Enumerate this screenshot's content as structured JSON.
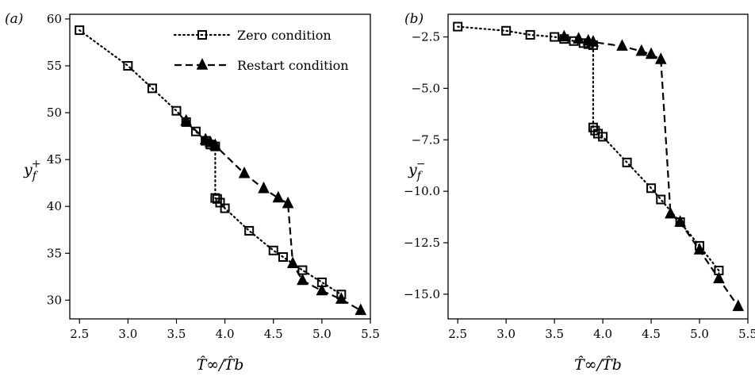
{
  "chart_data": [
    {
      "panel_label": "(a)",
      "type": "line",
      "xlabel": "T̂∞/T̂b",
      "ylabel": "y",
      "ylabel_sup": "+",
      "ylabel_sub": "f",
      "xlim": [
        2.4,
        5.5
      ],
      "ylim": [
        28,
        60.5
      ],
      "xticks": [
        2.5,
        3.0,
        3.5,
        4.0,
        4.5,
        5.0,
        5.5
      ],
      "xtick_labels": [
        "2.5",
        "3.0",
        "3.5",
        "4.0",
        "4.5",
        "5.0",
        "5.5"
      ],
      "yticks": [
        30,
        35,
        40,
        45,
        50,
        55,
        60
      ],
      "ytick_labels": [
        "30",
        "35",
        "40",
        "45",
        "50",
        "55",
        "60"
      ],
      "legend_position": "top-right",
      "series": [
        {
          "name": "Zero condition",
          "marker": "open-square",
          "line": "dotted",
          "x": [
            2.5,
            3.0,
            3.25,
            3.5,
            3.6,
            3.7,
            3.8,
            3.85,
            3.9,
            3.9,
            3.92,
            3.95,
            4.0,
            4.25,
            4.5,
            4.6,
            4.8,
            5.0,
            5.2
          ],
          "y": [
            58.8,
            55.0,
            52.6,
            50.2,
            49.0,
            48.0,
            47.0,
            46.6,
            46.4,
            40.9,
            40.8,
            40.4,
            39.8,
            37.4,
            35.3,
            34.6,
            33.2,
            31.9,
            30.6
          ]
        },
        {
          "name": "Restart condition",
          "marker": "filled-triangle",
          "line": "dashed",
          "x": [
            3.6,
            3.8,
            3.85,
            3.9,
            4.2,
            4.4,
            4.55,
            4.65,
            4.7,
            4.8,
            5.0,
            5.2,
            5.4
          ],
          "y": [
            49.1,
            47.1,
            46.8,
            46.5,
            43.5,
            41.9,
            40.9,
            40.3,
            33.9,
            32.1,
            31.0,
            30.1,
            28.9
          ]
        }
      ]
    },
    {
      "panel_label": "(b)",
      "type": "line",
      "xlabel": "T̂∞/T̂b",
      "ylabel": "y",
      "ylabel_sup": "−",
      "ylabel_sub": "f",
      "xlim": [
        2.4,
        5.5
      ],
      "ylim": [
        -16.2,
        -1.4
      ],
      "xticks": [
        2.5,
        3.0,
        3.5,
        4.0,
        4.5,
        5.0,
        5.5
      ],
      "xtick_labels": [
        "2.5",
        "3.0",
        "3.5",
        "4.0",
        "4.5",
        "5.0",
        "5.5"
      ],
      "yticks": [
        -2.5,
        -5.0,
        -7.5,
        -10.0,
        -12.5,
        -15.0
      ],
      "ytick_labels": [
        "−2.5",
        "−5.0",
        "−7.5",
        "−10.0",
        "−12.5",
        "−15.0"
      ],
      "series": [
        {
          "name": "Zero condition",
          "marker": "open-square",
          "line": "dotted",
          "x": [
            2.5,
            3.0,
            3.25,
            3.5,
            3.6,
            3.7,
            3.8,
            3.85,
            3.9,
            3.9,
            3.92,
            3.95,
            4.0,
            4.25,
            4.5,
            4.6,
            4.8,
            5.0,
            5.2
          ],
          "y": [
            -2.0,
            -2.2,
            -2.4,
            -2.5,
            -2.6,
            -2.7,
            -2.8,
            -2.85,
            -2.9,
            -6.9,
            -7.05,
            -7.2,
            -7.35,
            -8.6,
            -9.85,
            -10.4,
            -11.5,
            -12.65,
            -13.85
          ]
        },
        {
          "name": "Restart condition",
          "marker": "filled-triangle",
          "line": "dashed",
          "x": [
            3.6,
            3.75,
            3.85,
            3.9,
            4.2,
            4.4,
            4.5,
            4.6,
            4.7,
            4.8,
            5.0,
            5.2,
            5.4
          ],
          "y": [
            -2.5,
            -2.6,
            -2.7,
            -2.75,
            -2.95,
            -3.2,
            -3.35,
            -3.6,
            -11.1,
            -11.5,
            -12.85,
            -14.25,
            -15.6
          ]
        }
      ]
    }
  ]
}
